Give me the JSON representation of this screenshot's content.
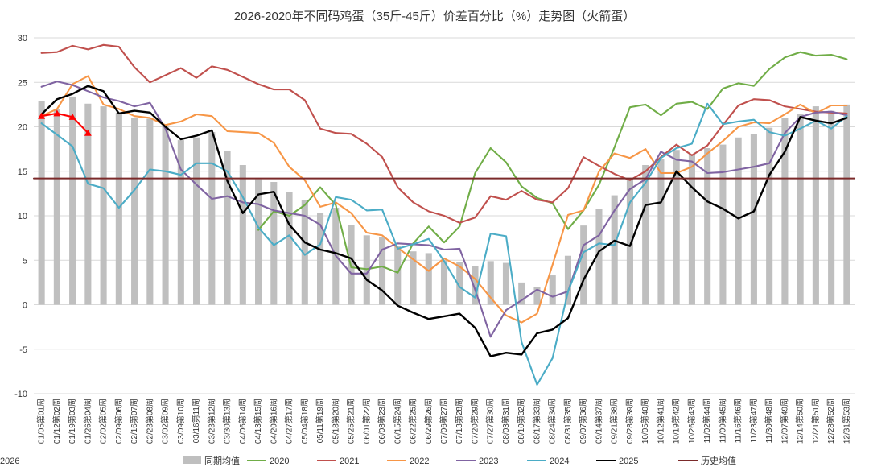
{
  "chart_data": {
    "type": "line",
    "title": "2026-2020年不同码鸡蛋（35斤-45斤）价差百分比（%）走势图（火箭蛋）",
    "xlabel": "",
    "ylabel": "",
    "ylim": [
      -10,
      30
    ],
    "yticks": [
      30,
      25,
      20,
      15,
      10,
      5,
      0,
      -5,
      -10
    ],
    "grid": true,
    "legend_position": "bottom",
    "categories": [
      "01/05第01周",
      "01/12第02周",
      "01/19第03周",
      "01/26第04周",
      "02/02第05周",
      "02/09第06周",
      "02/16第07周",
      "02/23第08周",
      "03/02第09周",
      "03/09第10周",
      "03/16第11周",
      "03/23第12周",
      "03/30第13周",
      "04/06第14周",
      "04/13第15周",
      "04/20第16周",
      "04/27第17周",
      "05/04第18周",
      "05/11第19周",
      "05/18第20周",
      "05/25第21周",
      "06/01第22周",
      "06/08第23周",
      "06/15第24周",
      "06/22第25周",
      "06/29第26周",
      "07/06第27周",
      "07/13第28周",
      "07/20第29周",
      "07/27第30周",
      "08/03第31周",
      "08/10第32周",
      "08/17第33周",
      "08/24第34周",
      "08/31第35周",
      "09/07第36周",
      "09/14第37周",
      "09/21第38周",
      "09/28第39周",
      "10/05第40周",
      "10/12第41周",
      "10/19第42周",
      "10/26第43周",
      "11/02第44周",
      "11/09第45周",
      "11/16第46周",
      "11/23第47周",
      "11/30第48周",
      "12/07第49周",
      "12/14第50周",
      "12/21第51周",
      "12/28第52周",
      "12/31第53周"
    ],
    "series": [
      {
        "name": "同期均值",
        "kind": "bar",
        "color": "#bfbfbf",
        "values": [
          22.9,
          22.0,
          23.4,
          22.6,
          22.3,
          21.6,
          21.0,
          20.9,
          20.1,
          18.5,
          18.8,
          19.4,
          17.3,
          15.7,
          14.1,
          13.8,
          12.7,
          11.8,
          10.3,
          10.9,
          9.0,
          7.8,
          7.6,
          6.6,
          6.0,
          5.8,
          5.0,
          4.8,
          4.3,
          4.9,
          4.7,
          2.5,
          2.0,
          3.3,
          5.5,
          8.9,
          10.8,
          12.3,
          14.0,
          15.7,
          16.4,
          17.4,
          16.9,
          17.6,
          18.0,
          18.8,
          19.2,
          19.9,
          21.0,
          21.4,
          22.3,
          21.8,
          22.5
        ]
      },
      {
        "name": "2020",
        "kind": "line",
        "color": "#70ad47",
        "values": [
          null,
          null,
          null,
          null,
          null,
          null,
          null,
          null,
          null,
          null,
          null,
          null,
          null,
          null,
          8.4,
          10.5,
          10.0,
          11.2,
          13.2,
          11.2,
          4.2,
          4.0,
          4.3,
          3.6,
          6.9,
          8.8,
          7.0,
          8.8,
          14.8,
          17.6,
          16.0,
          13.3,
          12.0,
          11.4,
          8.5,
          10.6,
          13.5,
          17.7,
          22.2,
          22.5,
          21.3,
          22.6,
          22.8,
          22.0,
          24.3,
          24.9,
          24.6,
          26.5,
          27.8,
          28.4,
          28.0,
          28.1,
          27.6
        ]
      },
      {
        "name": "2021",
        "kind": "line",
        "color": "#c0504d",
        "values": [
          28.3,
          28.4,
          29.1,
          28.7,
          29.2,
          29.0,
          26.7,
          25.0,
          25.8,
          26.6,
          25.5,
          26.8,
          26.4,
          25.6,
          24.8,
          24.2,
          24.2,
          23.0,
          19.8,
          19.3,
          19.2,
          18.1,
          16.6,
          13.2,
          11.5,
          10.5,
          10.0,
          9.2,
          9.8,
          12.2,
          11.8,
          12.8,
          11.8,
          11.5,
          13.1,
          16.6,
          15.6,
          14.7,
          14.0,
          15.0,
          16.6,
          18.0,
          16.8,
          17.9,
          20.2,
          22.4,
          23.1,
          23.0,
          22.3,
          22.0,
          21.7,
          21.6,
          21.5
        ]
      },
      {
        "name": "2022",
        "kind": "line",
        "color": "#f79646",
        "values": [
          21.2,
          22.0,
          24.8,
          25.7,
          22.5,
          22.0,
          21.2,
          21.0,
          20.2,
          20.6,
          21.4,
          21.2,
          19.5,
          19.4,
          19.3,
          18.2,
          15.5,
          14.0,
          11.0,
          11.5,
          10.3,
          8.1,
          7.8,
          6.4,
          5.1,
          3.8,
          5.2,
          4.3,
          2.9,
          0.8,
          -1.2,
          -2.0,
          -1.0,
          4.5,
          10.1,
          10.6,
          15.0,
          17.0,
          16.5,
          17.5,
          14.8,
          14.8,
          15.5,
          17.0,
          18.4,
          20.0,
          20.5,
          20.4,
          21.4,
          22.5,
          21.5,
          22.4,
          22.4
        ]
      },
      {
        "name": "2023",
        "kind": "line",
        "color": "#8064a2",
        "values": [
          24.5,
          25.1,
          24.7,
          24.0,
          23.3,
          22.9,
          22.3,
          22.7,
          19.8,
          15.2,
          13.5,
          11.9,
          12.2,
          11.5,
          11.3,
          10.6,
          10.3,
          10.0,
          9.0,
          5.5,
          3.5,
          3.5,
          6.2,
          6.9,
          6.8,
          6.7,
          6.2,
          6.3,
          1.7,
          -3.6,
          -0.6,
          0.5,
          1.7,
          0.9,
          1.5,
          6.7,
          7.8,
          10.6,
          13.0,
          14.1,
          17.2,
          16.3,
          16.1,
          14.8,
          14.9,
          15.2,
          15.5,
          15.9,
          19.3,
          21.1,
          21.6,
          21.7,
          21.3
        ]
      },
      {
        "name": "2024",
        "kind": "line",
        "color": "#4bacc6",
        "values": [
          20.4,
          19.1,
          17.8,
          13.6,
          13.1,
          10.9,
          12.9,
          15.2,
          15.0,
          14.6,
          15.9,
          15.9,
          15.0,
          12.1,
          8.7,
          6.7,
          7.8,
          5.6,
          6.8,
          12.1,
          11.8,
          10.6,
          10.7,
          6.3,
          6.8,
          7.4,
          4.9,
          2.0,
          0.8,
          8.0,
          7.7,
          -4.2,
          -9.0,
          -6.0,
          1.5,
          5.9,
          6.9,
          6.7,
          11.5,
          13.7,
          16.5,
          17.6,
          18.1,
          22.6,
          20.3,
          20.6,
          20.8,
          19.4,
          19.0,
          19.8,
          20.7,
          19.8,
          21.2
        ]
      },
      {
        "name": "2025",
        "kind": "line",
        "color": "#000000",
        "values": [
          21.4,
          23.1,
          23.7,
          24.6,
          24.0,
          21.5,
          21.8,
          21.6,
          20.0,
          18.6,
          19.0,
          19.6,
          13.9,
          10.3,
          12.4,
          12.7,
          9.0,
          7.0,
          6.2,
          5.8,
          5.2,
          2.8,
          1.6,
          -0.1,
          -0.9,
          -1.6,
          -1.3,
          -1.0,
          -2.6,
          -5.8,
          -5.4,
          -5.6,
          -3.2,
          -2.8,
          -1.5,
          2.8,
          6.0,
          7.2,
          6.6,
          11.2,
          11.5,
          15.0,
          13.2,
          11.6,
          10.8,
          9.7,
          10.5,
          14.6,
          17.2,
          21.1,
          20.7,
          20.4,
          21.0
        ]
      },
      {
        "name": "历史均值",
        "kind": "flat",
        "color": "#7b2a2a",
        "values": [
          14.2,
          14.2,
          14.2,
          14.2,
          14.2,
          14.2,
          14.2,
          14.2,
          14.2,
          14.2,
          14.2,
          14.2,
          14.2,
          14.2,
          14.2,
          14.2,
          14.2,
          14.2,
          14.2,
          14.2,
          14.2,
          14.2,
          14.2,
          14.2,
          14.2,
          14.2,
          14.2,
          14.2,
          14.2,
          14.2,
          14.2,
          14.2,
          14.2,
          14.2,
          14.2,
          14.2,
          14.2,
          14.2,
          14.2,
          14.2,
          14.2,
          14.2,
          14.2,
          14.2,
          14.2,
          14.2,
          14.2,
          14.2,
          14.2,
          14.2,
          14.2,
          14.2,
          14.2
        ]
      },
      {
        "name": "2026",
        "kind": "marker-line",
        "color": "#ff0000",
        "values": [
          21.2,
          21.5,
          21.1,
          19.3,
          null,
          null,
          null,
          null,
          null,
          null,
          null,
          null,
          null,
          null,
          null,
          null,
          null,
          null,
          null,
          null,
          null,
          null,
          null,
          null,
          null,
          null,
          null,
          null,
          null,
          null,
          null,
          null,
          null,
          null,
          null,
          null,
          null,
          null,
          null,
          null,
          null,
          null,
          null,
          null,
          null,
          null,
          null,
          null,
          null,
          null,
          null,
          null,
          null
        ]
      }
    ]
  }
}
